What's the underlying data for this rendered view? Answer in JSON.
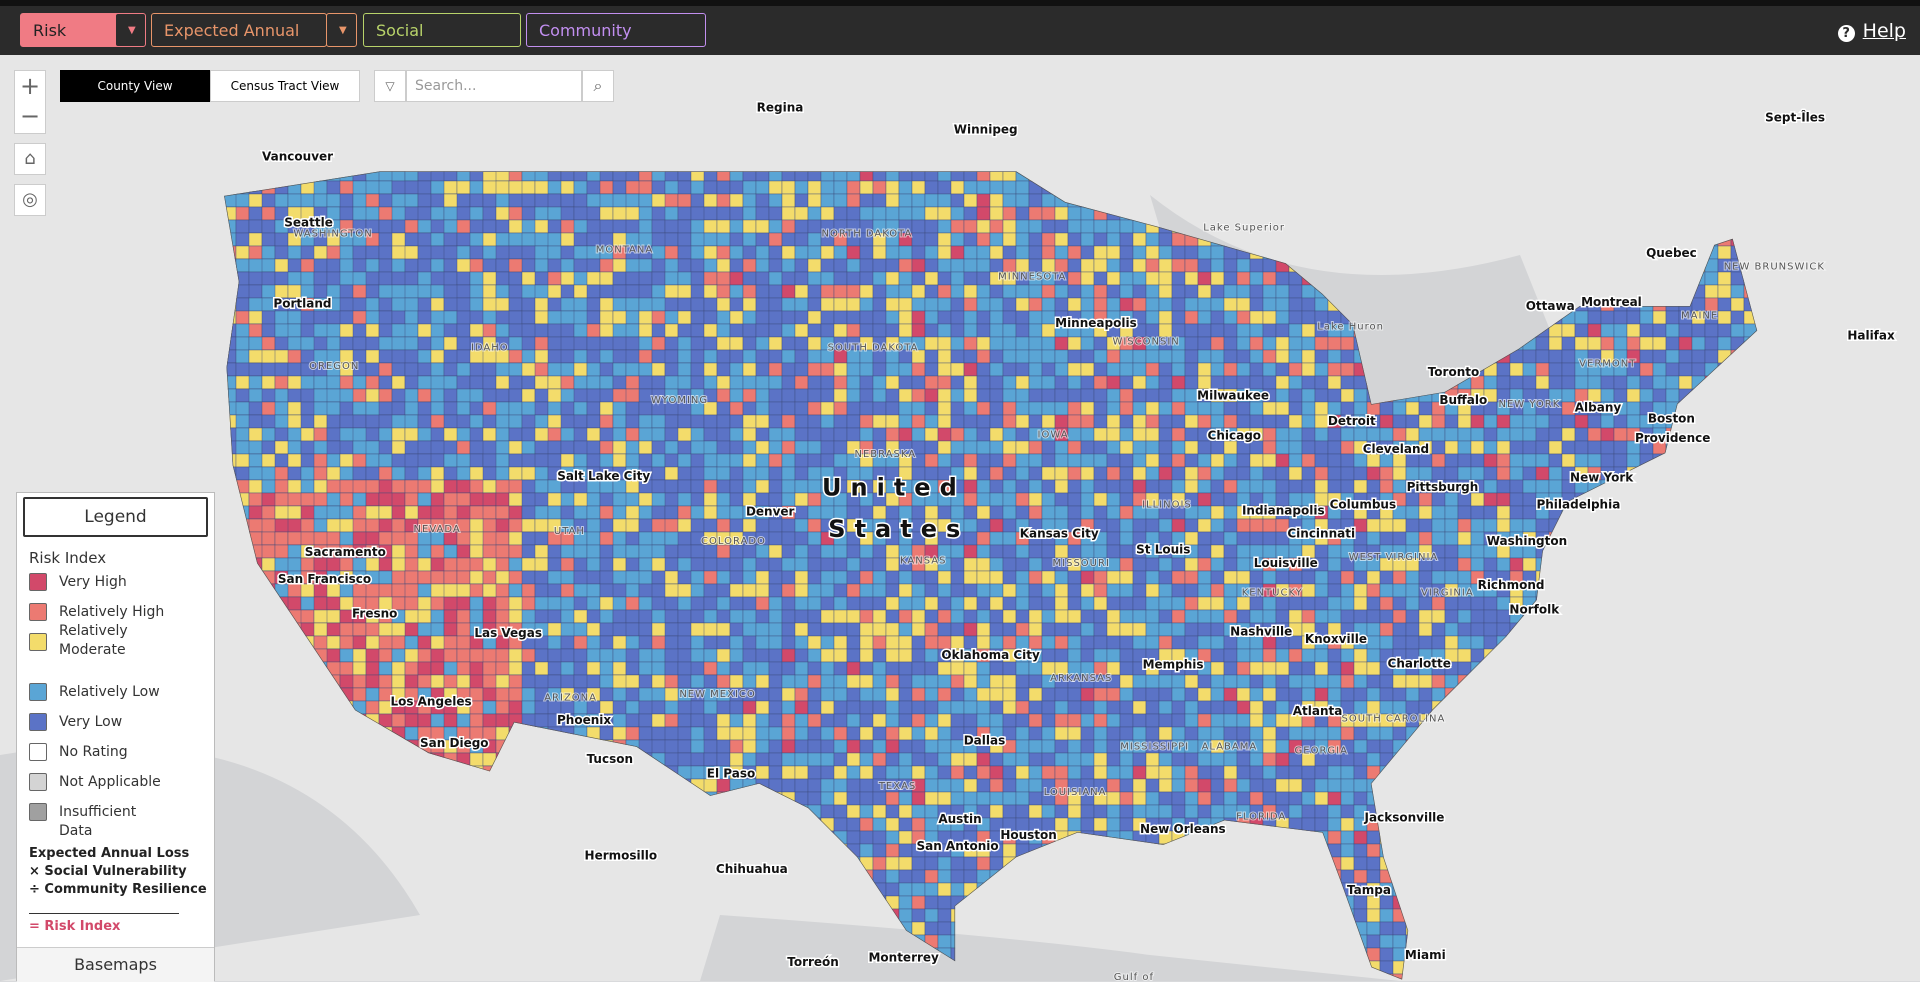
{
  "toolbar": {
    "tabs": [
      "Risk Index",
      "Expected Annual Loss",
      "Social Vulnerability",
      "Community Resilience"
    ],
    "help": "Help"
  },
  "view_toggle": [
    "County View",
    "Census Tract View"
  ],
  "search": {
    "placeholder": "Search..."
  },
  "map": {
    "country_label": [
      "United",
      "States"
    ],
    "places": [
      "Regina",
      "Winnipeg",
      "Vancouver",
      "Seattle",
      "Portland",
      "Sacramento",
      "San Francisco",
      "Fresno",
      "Las Vegas",
      "Los Angeles",
      "San Diego",
      "Phoenix",
      "Tucson",
      "Salt Lake City",
      "Denver",
      "El Paso",
      "Hermosillo",
      "Chihuahua",
      "Torreón",
      "Monterrey",
      "Dallas",
      "Oklahoma City",
      "Austin",
      "San Antonio",
      "Houston",
      "Kansas City",
      "St Louis",
      "Memphis",
      "Nashville",
      "New Orleans",
      "Atlanta",
      "Jacksonville",
      "Miami",
      "Tampa",
      "Charlotte",
      "Knoxville",
      "Richmond",
      "Norfolk",
      "Washington",
      "Philadelphia",
      "New York",
      "Boston",
      "Providence",
      "Albany",
      "Buffalo",
      "Toronto",
      "Ottawa",
      "Montreal",
      "Quebec",
      "Halifax",
      "Pittsburgh",
      "Cleveland",
      "Detroit",
      "Chicago",
      "Milwaukee",
      "Minneapolis",
      "Indianapolis",
      "Columbus",
      "Cincinnati",
      "Louisville",
      "Sept-Îles"
    ],
    "regions": [
      "WASHINGTON",
      "OREGON",
      "IDAHO",
      "MONTANA",
      "WYOMING",
      "NEVADA",
      "UTAH",
      "COLORADO",
      "ARIZONA",
      "NEW MEXICO",
      "NORTH DAKOTA",
      "SOUTH DAKOTA",
      "NEBRASKA",
      "KANSAS",
      "TEXAS",
      "MINNESOTA",
      "IOWA",
      "MISSOURI",
      "ARKANSAS",
      "LOUISIANA",
      "MISSISSIPPI",
      "ALABAMA",
      "ILLINOIS",
      "WISCONSIN",
      "KENTUCKY",
      "GEORGIA",
      "FLORIDA",
      "SOUTH CAROLINA",
      "WEST VIRGINIA",
      "VIRGINIA",
      "NEW YORK",
      "VERMONT",
      "MAINE",
      "NEW BRUNSWICK",
      "Lake Superior",
      "Lake Huron",
      "Gulf of"
    ]
  },
  "legend": {
    "title": "Legend",
    "heading": "Risk Index",
    "items": [
      {
        "label": "Very High",
        "color": "#d2496a"
      },
      {
        "label": "Relatively High",
        "color": "#ec7a72"
      },
      {
        "label": "Relatively Moderate",
        "color": "#f3dc6b"
      },
      {
        "label": "Relatively Low",
        "color": "#5aa5d5"
      },
      {
        "label": "Very Low",
        "color": "#5b73c6"
      },
      {
        "label": "No Rating",
        "color": "#ffffff"
      },
      {
        "label": "Not Applicable",
        "color": "#d4d4d4"
      },
      {
        "label": "Insufficient Data",
        "color": "#a0a0a0"
      }
    ],
    "formula": [
      "Expected Annual Loss",
      "× Social Vulnerability",
      "÷ Community Resilience"
    ],
    "result": "= Risk Index"
  },
  "basemaps": "Basemaps"
}
